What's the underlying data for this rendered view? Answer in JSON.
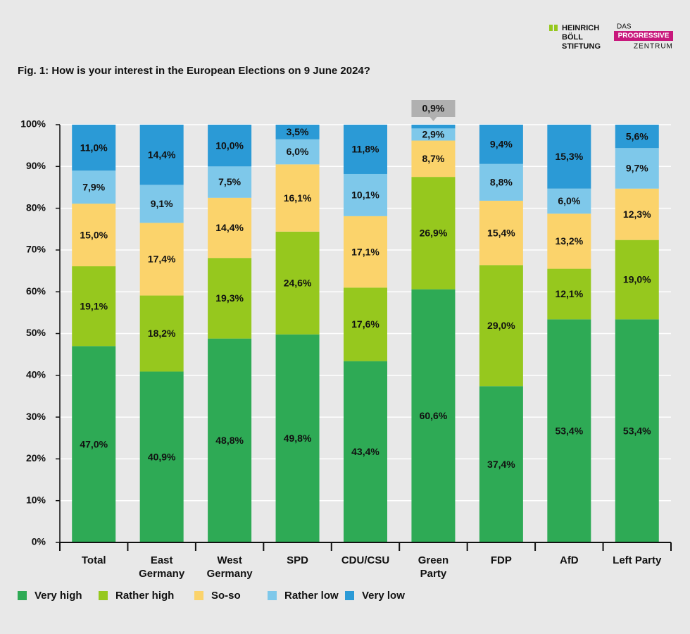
{
  "branding": {
    "hbs": [
      "HEINRICH",
      "BÖLL",
      "STIFTUNG"
    ],
    "dpz": [
      "DAS",
      "PROGRESSIVE",
      "ZENTRUM"
    ]
  },
  "chart_data": {
    "type": "stacked_bar",
    "title": "Fig. 1: How is your interest in the European Elections on 9 June 2024?",
    "categories": [
      "Total",
      "East Germany",
      "West Germany",
      "SPD",
      "CDU/CSU",
      "Green Party",
      "FDP",
      "AfD",
      "Left Party"
    ],
    "series": [
      {
        "name": "Very high",
        "color": "#2eaa55",
        "values": [
          47.0,
          40.9,
          48.8,
          49.8,
          43.4,
          60.6,
          37.4,
          53.4,
          53.4
        ],
        "value_labels": [
          "47,0%",
          "40,9%",
          "48,8%",
          "49,8%",
          "43,4%",
          "60,6%",
          "37,4%",
          "53,4%",
          "53,4%"
        ]
      },
      {
        "name": "Rather high",
        "color": "#96c81e",
        "values": [
          19.1,
          18.2,
          19.3,
          24.6,
          17.6,
          26.9,
          29.0,
          12.1,
          19.0
        ],
        "value_labels": [
          "19,1%",
          "18,2%",
          "19,3%",
          "24,6%",
          "17,6%",
          "26,9%",
          "29,0%",
          "12,1%",
          "19,0%"
        ]
      },
      {
        "name": "So-so",
        "color": "#fbd36b",
        "values": [
          15.0,
          17.4,
          14.4,
          16.1,
          17.1,
          8.7,
          15.4,
          13.2,
          12.3
        ],
        "value_labels": [
          "15,0%",
          "17,4%",
          "14,4%",
          "16,1%",
          "17,1%",
          "8,7%",
          "15,4%",
          "13,2%",
          "12,3%"
        ]
      },
      {
        "name": "Rather low",
        "color": "#7ec8ea",
        "values": [
          7.9,
          9.1,
          7.5,
          6.0,
          10.1,
          2.9,
          8.8,
          6.0,
          9.7
        ],
        "value_labels": [
          "7,9%",
          "9,1%",
          "7,5%",
          "6,0%",
          "10,1%",
          "2,9%",
          "8,8%",
          "6,0%",
          "9,7%"
        ]
      },
      {
        "name": "Very low",
        "color": "#2b9ad6",
        "values": [
          11.0,
          14.4,
          10.0,
          3.5,
          11.8,
          0.9,
          9.4,
          15.3,
          5.6
        ],
        "value_labels": [
          "11,0%",
          "14,4%",
          "10,0%",
          "3,5%",
          "11,8%",
          "0,9%",
          "9,4%",
          "15,3%",
          "5,6%"
        ]
      }
    ],
    "ylim": [
      0,
      100
    ],
    "yticks": [
      {
        "value": 0,
        "label": "0%"
      },
      {
        "value": 10,
        "label": "10%"
      },
      {
        "value": 20,
        "label": "20%"
      },
      {
        "value": 30,
        "label": "30%"
      },
      {
        "value": 40,
        "label": "40%"
      },
      {
        "value": 50,
        "label": "50%"
      },
      {
        "value": 60,
        "label": "60%"
      },
      {
        "value": 70,
        "label": "70%"
      },
      {
        "value": 80,
        "label": "80%"
      },
      {
        "value": 90,
        "label": "90%"
      },
      {
        "value": 100,
        "label": "100%"
      }
    ],
    "grid": true
  }
}
